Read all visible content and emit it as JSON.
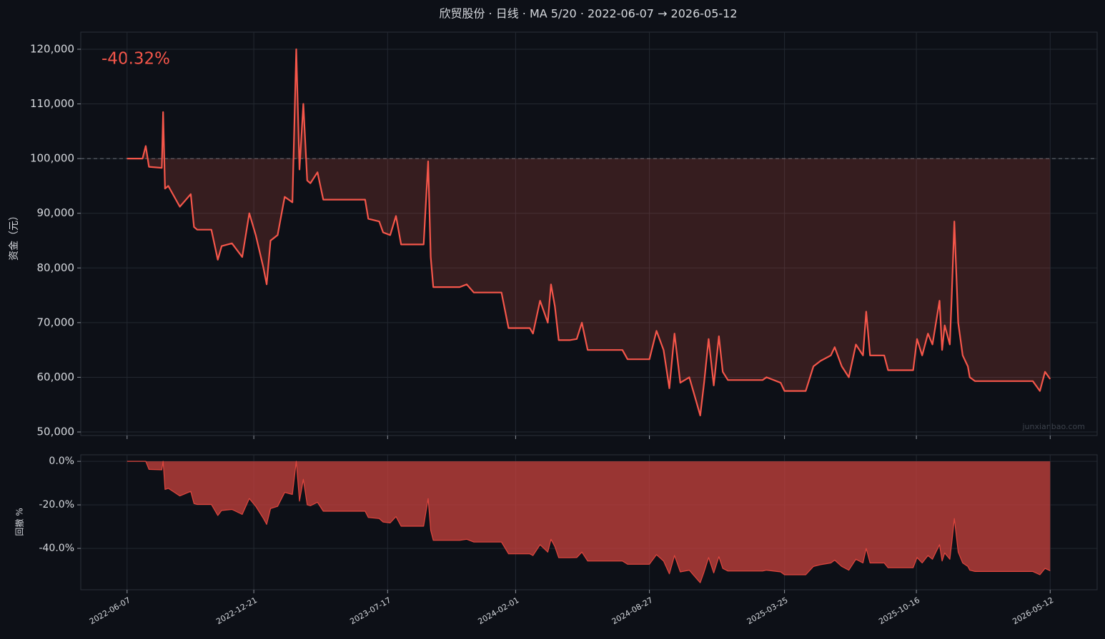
{
  "chart_data": [
    {
      "type": "line",
      "title": "欣贸股份 · 日线 · MA 5/20 · 2022-06-07 → 2026-05-12",
      "y_label": "资金（元）",
      "annotation": "-40.32%",
      "watermark": "junxianbao.com",
      "x": [
        "2022-06-07",
        "2022-07-01",
        "2022-07-06",
        "2022-07-11",
        "2022-07-31",
        "2022-08-02",
        "2022-08-05",
        "2022-08-10",
        "2022-08-28",
        "2022-09-14",
        "2022-09-19",
        "2022-09-24",
        "2022-10-16",
        "2022-10-26",
        "2022-11-01",
        "2022-11-17",
        "2022-12-03",
        "2022-12-14",
        "2022-12-24",
        "2023-01-05",
        "2023-01-10",
        "2023-01-16",
        "2023-01-27",
        "2023-02-07",
        "2023-02-19",
        "2023-02-25",
        "2023-03-02",
        "2023-03-08",
        "2023-03-14",
        "2023-03-19",
        "2023-03-30",
        "2023-04-08",
        "2023-06-12",
        "2023-06-17",
        "2023-07-04",
        "2023-07-10",
        "2023-07-21",
        "2023-07-30",
        "2023-08-07",
        "2023-09-11",
        "2023-09-18",
        "2023-09-22",
        "2023-09-26",
        "2023-11-06",
        "2023-11-17",
        "2023-11-28",
        "2024-01-10",
        "2024-01-21",
        "2024-02-23",
        "2024-02-28",
        "2024-03-10",
        "2024-03-22",
        "2024-03-27",
        "2024-04-02",
        "2024-04-08",
        "2024-04-25",
        "2024-05-06",
        "2024-05-14",
        "2024-05-23",
        "2024-07-16",
        "2024-07-24",
        "2024-08-27",
        "2024-09-07",
        "2024-09-18",
        "2024-09-27",
        "2024-10-05",
        "2024-10-14",
        "2024-10-28",
        "2024-11-08",
        "2024-11-14",
        "2024-11-20",
        "2024-11-27",
        "2024-12-05",
        "2024-12-13",
        "2024-12-19",
        "2024-12-27",
        "2025-02-19",
        "2025-02-25",
        "2025-03-19",
        "2025-03-25",
        "2025-04-27",
        "2025-05-09",
        "2025-05-20",
        "2025-06-05",
        "2025-06-11",
        "2025-06-22",
        "2025-07-03",
        "2025-07-14",
        "2025-07-25",
        "2025-07-30",
        "2025-08-05",
        "2025-08-27",
        "2025-09-02",
        "2025-10-11",
        "2025-10-17",
        "2025-10-25",
        "2025-11-03",
        "2025-11-10",
        "2025-11-21",
        "2025-11-25",
        "2025-11-29",
        "2025-12-07",
        "2025-12-10",
        "2025-12-14",
        "2025-12-20",
        "2025-12-27",
        "2026-01-04",
        "2026-01-07",
        "2026-01-15",
        "2026-04-15",
        "2026-04-26",
        "2026-05-04",
        "2026-05-12"
      ],
      "series": [
        {
          "color": "#f5564a",
          "fill_color": "rgba(245,86,74,0.18)",
          "values": [
            100000,
            100000,
            102300,
            98500,
            98300,
            108500,
            94500,
            95000,
            91200,
            93500,
            87500,
            87000,
            87000,
            81500,
            84000,
            84500,
            82000,
            90000,
            86000,
            80000,
            77000,
            85000,
            86000,
            93000,
            92000,
            120000,
            98000,
            110000,
            96000,
            95500,
            97500,
            92500,
            92500,
            89000,
            88500,
            86500,
            86000,
            89500,
            84300,
            84300,
            99500,
            82000,
            76500,
            76500,
            77000,
            75500,
            75500,
            69000,
            69000,
            68000,
            74000,
            70000,
            77000,
            73000,
            66800,
            66800,
            67000,
            70000,
            65000,
            65000,
            63300,
            63300,
            68500,
            65000,
            58000,
            68000,
            59000,
            60000,
            55500,
            53000,
            59000,
            67000,
            58500,
            67500,
            61000,
            59500,
            59500,
            60000,
            59000,
            57500,
            57500,
            62000,
            63000,
            64000,
            65500,
            62000,
            60000,
            66000,
            64000,
            72000,
            64000,
            64000,
            61300,
            61300,
            67000,
            64000,
            68000,
            66000,
            74000,
            65000,
            69500,
            66000,
            75000,
            88500,
            70000,
            64000,
            62000,
            60000,
            59300,
            59300,
            57500,
            61000,
            59680
          ]
        }
      ],
      "baseline": 100000,
      "xlim": [
        "2022-03-27",
        "2026-07-24"
      ],
      "xticks": [
        "2022-06-07",
        "2022-12-21",
        "2023-07-17",
        "2024-02-01",
        "2024-08-27",
        "2025-03-25",
        "2025-10-16",
        "2026-05-12"
      ],
      "ylim": [
        49350,
        123130
      ],
      "yticks": [
        {
          "value": 50000,
          "label": "50,000"
        },
        {
          "value": 60000,
          "label": "60,000"
        },
        {
          "value": 70000,
          "label": "70,000"
        },
        {
          "value": 80000,
          "label": "80,000"
        },
        {
          "value": 90000,
          "label": "90,000"
        },
        {
          "value": 100000,
          "label": "100,000"
        },
        {
          "value": 110000,
          "label": "110,000"
        },
        {
          "value": 120000,
          "label": "120,000"
        }
      ],
      "grid": true
    },
    {
      "type": "area",
      "y_label": "回撤 %",
      "x": [
        "2022-06-07",
        "2022-07-01",
        "2022-07-06",
        "2022-07-11",
        "2022-07-31",
        "2022-08-02",
        "2022-08-05",
        "2022-08-10",
        "2022-08-28",
        "2022-09-14",
        "2022-09-19",
        "2022-09-24",
        "2022-10-16",
        "2022-10-26",
        "2022-11-01",
        "2022-11-17",
        "2022-12-03",
        "2022-12-14",
        "2022-12-24",
        "2023-01-05",
        "2023-01-10",
        "2023-01-16",
        "2023-01-27",
        "2023-02-07",
        "2023-02-19",
        "2023-02-25",
        "2023-03-02",
        "2023-03-08",
        "2023-03-14",
        "2023-03-19",
        "2023-03-30",
        "2023-04-08",
        "2023-06-12",
        "2023-06-17",
        "2023-07-04",
        "2023-07-10",
        "2023-07-21",
        "2023-07-30",
        "2023-08-07",
        "2023-09-11",
        "2023-09-18",
        "2023-09-22",
        "2023-09-26",
        "2023-11-06",
        "2023-11-17",
        "2023-11-28",
        "2024-01-10",
        "2024-01-21",
        "2024-02-23",
        "2024-02-28",
        "2024-03-10",
        "2024-03-22",
        "2024-03-27",
        "2024-04-02",
        "2024-04-08",
        "2024-04-25",
        "2024-05-06",
        "2024-05-14",
        "2024-05-23",
        "2024-07-16",
        "2024-07-24",
        "2024-08-27",
        "2024-09-07",
        "2024-09-18",
        "2024-09-27",
        "2024-10-05",
        "2024-10-14",
        "2024-10-28",
        "2024-11-08",
        "2024-11-14",
        "2024-11-20",
        "2024-11-27",
        "2024-12-05",
        "2024-12-13",
        "2024-12-19",
        "2024-12-27",
        "2025-02-19",
        "2025-02-25",
        "2025-03-19",
        "2025-03-25",
        "2025-04-27",
        "2025-05-09",
        "2025-05-20",
        "2025-06-05",
        "2025-06-11",
        "2025-06-22",
        "2025-07-03",
        "2025-07-14",
        "2025-07-25",
        "2025-07-30",
        "2025-08-05",
        "2025-08-27",
        "2025-09-02",
        "2025-10-11",
        "2025-10-17",
        "2025-10-25",
        "2025-11-03",
        "2025-11-10",
        "2025-11-21",
        "2025-11-25",
        "2025-11-29",
        "2025-12-07",
        "2025-12-10",
        "2025-12-14",
        "2025-12-20",
        "2025-12-27",
        "2026-01-04",
        "2026-01-07",
        "2026-01-15",
        "2026-04-15",
        "2026-04-26",
        "2026-05-04",
        "2026-05-12"
      ],
      "series": [
        {
          "color": "#e0463e",
          "fill_color": "rgba(200,66,62,0.75)",
          "values": [
            0,
            0,
            0,
            -3.7,
            -3.9,
            0,
            -12.9,
            -12.4,
            -15.9,
            -13.8,
            -19.4,
            -19.8,
            -19.8,
            -24.9,
            -22.6,
            -22.1,
            -24.4,
            -17.1,
            -20.7,
            -26.3,
            -29.0,
            -21.7,
            -20.7,
            -14.3,
            -15.2,
            0,
            -18.3,
            -8.3,
            -20.0,
            -20.4,
            -18.8,
            -22.9,
            -22.9,
            -25.8,
            -26.3,
            -27.9,
            -28.3,
            -25.4,
            -29.8,
            -29.8,
            -17.1,
            -31.7,
            -36.3,
            -36.3,
            -35.8,
            -37.1,
            -37.1,
            -42.5,
            -42.5,
            -43.3,
            -38.3,
            -41.7,
            -35.8,
            -39.2,
            -44.3,
            -44.3,
            -44.2,
            -41.7,
            -45.8,
            -45.8,
            -47.3,
            -47.3,
            -42.9,
            -45.8,
            -51.7,
            -43.3,
            -50.8,
            -50.0,
            -53.8,
            -55.8,
            -50.8,
            -44.2,
            -51.3,
            -43.8,
            -49.2,
            -50.4,
            -50.4,
            -50.0,
            -50.8,
            -52.1,
            -52.1,
            -48.3,
            -47.5,
            -46.7,
            -45.4,
            -48.3,
            -50.0,
            -45.0,
            -46.7,
            -40.0,
            -46.7,
            -46.7,
            -48.9,
            -48.9,
            -44.2,
            -46.7,
            -43.3,
            -45.0,
            -38.3,
            -45.8,
            -42.1,
            -45.0,
            -37.5,
            -26.3,
            -41.7,
            -46.7,
            -48.3,
            -50.0,
            -50.6,
            -50.6,
            -52.1,
            -49.2,
            -50.3
          ]
        }
      ],
      "xlim": [
        "2022-03-27",
        "2026-07-24"
      ],
      "xticks": [
        "2022-06-07",
        "2022-12-21",
        "2023-07-17",
        "2024-02-01",
        "2024-08-27",
        "2025-03-25",
        "2025-10-16",
        "2026-05-12"
      ],
      "ylim": [
        -59,
        3
      ],
      "yticks": [
        {
          "value": 0,
          "label": "0.0%"
        },
        {
          "value": -20,
          "label": "-20.0%"
        },
        {
          "value": -40,
          "label": "-40.0%"
        }
      ],
      "grid": true
    }
  ]
}
